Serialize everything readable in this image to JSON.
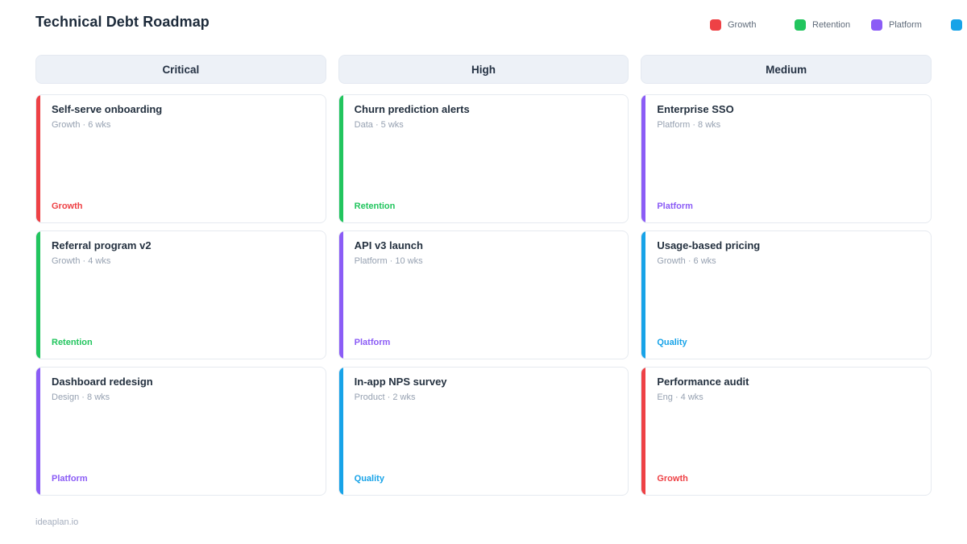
{
  "page": {
    "title": "Technical Debt Roadmap",
    "footer": "ideaplan.io"
  },
  "legend": {
    "items": [
      {
        "label": "Growth",
        "color": "#ee4145"
      },
      {
        "label": "Retention",
        "color": "#22c55e"
      },
      {
        "label": "Platform",
        "color": "#8b5cf6"
      },
      {
        "label": "",
        "color": "#17a3e8"
      }
    ]
  },
  "board": {
    "columns": [
      {
        "header": "Critical",
        "cards": [
          {
            "title": "Self-serve onboarding",
            "meta": "Growth · 6 wks",
            "tag": "Growth",
            "color": "#ee4145"
          },
          {
            "title": "Referral program v2",
            "meta": "Growth · 4 wks",
            "tag": "Retention",
            "color": "#22c55e"
          },
          {
            "title": "Dashboard redesign",
            "meta": "Design · 8 wks",
            "tag": "Platform",
            "color": "#8b5cf6"
          }
        ]
      },
      {
        "header": "High",
        "cards": [
          {
            "title": "Churn prediction alerts",
            "meta": "Data · 5 wks",
            "tag": "Retention",
            "color": "#22c55e"
          },
          {
            "title": "API v3 launch",
            "meta": "Platform · 10 wks",
            "tag": "Platform",
            "color": "#8b5cf6"
          },
          {
            "title": "In-app NPS survey",
            "meta": "Product · 2 wks",
            "tag": "Quality",
            "color": "#17a3e8"
          }
        ]
      },
      {
        "header": "Medium",
        "cards": [
          {
            "title": "Enterprise SSO",
            "meta": "Platform · 8 wks",
            "tag": "Platform",
            "color": "#8b5cf6"
          },
          {
            "title": "Usage-based pricing",
            "meta": "Growth · 6 wks",
            "tag": "Quality",
            "color": "#17a3e8"
          },
          {
            "title": "Performance audit",
            "meta": "Eng · 4 wks",
            "tag": "Growth",
            "color": "#ee4145"
          }
        ]
      }
    ]
  }
}
